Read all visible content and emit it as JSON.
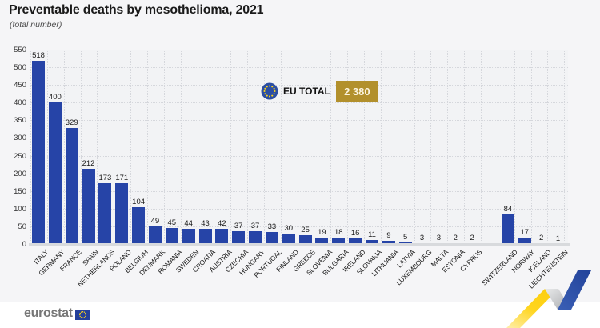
{
  "chart_data": {
    "type": "bar",
    "title": "Preventable deaths by mesothelioma, 2021",
    "subtitle": "(total number)",
    "categories": [
      "ITALY",
      "GERMANY",
      "FRANCE",
      "SPAIN",
      "NETHERLANDS",
      "POLAND",
      "BELGIUM",
      "DENMARK",
      "ROMANIA",
      "SWEDEN",
      "CROATIA",
      "AUSTRIA",
      "CZECHIA",
      "HUNGARY",
      "PORTUGAL",
      "FINLAND",
      "GREECE",
      "SLOVENIA",
      "BULGARIA",
      "IRELAND",
      "SLOVAKIA",
      "LITHUANIA",
      "LATVIA",
      "LUXEMBOURG",
      "MALTA",
      "ESTONIA",
      "CYPRUS",
      "SWITZERLAND",
      "NORWAY",
      "ICELAND",
      "LIECHTENSTEIN"
    ],
    "values": [
      518,
      400,
      329,
      212,
      173,
      171,
      104,
      49,
      45,
      44,
      43,
      42,
      37,
      37,
      33,
      30,
      25,
      19,
      18,
      16,
      11,
      9,
      5,
      3,
      3,
      2,
      2,
      84,
      17,
      2,
      1
    ],
    "gap_after_index": 26,
    "ylim": [
      0,
      550
    ],
    "ytick_step": 50,
    "grid": "dotted",
    "legend": "none",
    "bar_color": "#2644a7",
    "annotation": {
      "label": "EU TOTAL",
      "value": "2 380"
    }
  },
  "footer": {
    "logo_text": "eurostat"
  },
  "colors": {
    "background": "#f5f5f7",
    "plot_background": "#f2f3f5",
    "bar": "#2644a7",
    "eu_total_box": "#b2902c",
    "ribbon_yellow": "#ffd51e",
    "ribbon_gray": "#b7b9bc",
    "ribbon_blue": "#2e51a4",
    "eu_flag_blue": "#2b4ea3",
    "eu_flag_star": "#ffd617"
  }
}
